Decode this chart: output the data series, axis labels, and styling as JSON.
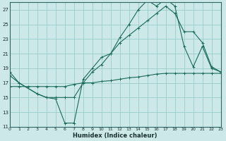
{
  "xlabel": "Humidex (Indice chaleur)",
  "bg_color": "#cce8e8",
  "grid_color": "#99cccc",
  "line_color": "#1a6b5a",
  "xlim": [
    0,
    23
  ],
  "ylim": [
    11,
    28
  ],
  "xticks": [
    0,
    1,
    2,
    3,
    4,
    5,
    6,
    7,
    8,
    9,
    10,
    11,
    12,
    13,
    14,
    15,
    16,
    17,
    18,
    19,
    20,
    21,
    22,
    23
  ],
  "yticks": [
    11,
    13,
    15,
    17,
    19,
    21,
    23,
    25,
    27
  ],
  "series1_x": [
    0,
    1,
    3,
    4,
    5,
    6,
    7,
    8,
    9,
    10,
    11,
    12,
    13,
    14,
    15,
    16,
    17,
    18,
    19,
    20,
    21,
    22,
    23
  ],
  "series1_y": [
    18.5,
    17.0,
    15.5,
    15.0,
    14.8,
    11.5,
    11.5,
    17.5,
    19.0,
    20.5,
    21.0,
    23.2,
    25.0,
    27.0,
    28.3,
    27.5,
    28.5,
    27.5,
    22.0,
    19.2,
    22.0,
    19.0,
    18.5
  ],
  "series2_x": [
    0,
    1,
    3,
    4,
    5,
    6,
    7,
    8,
    9,
    10,
    11,
    12,
    13,
    14,
    15,
    16,
    17,
    18,
    19,
    20,
    21,
    22,
    23
  ],
  "series2_y": [
    18.0,
    17.0,
    15.5,
    15.0,
    15.0,
    15.0,
    15.0,
    17.0,
    18.5,
    19.5,
    21.0,
    22.5,
    23.5,
    24.5,
    25.5,
    26.5,
    27.5,
    26.5,
    24.0,
    24.0,
    22.5,
    19.2,
    18.5
  ],
  "series3_x": [
    0,
    1,
    2,
    3,
    4,
    5,
    6,
    7,
    8,
    9,
    10,
    11,
    12,
    13,
    14,
    15,
    16,
    17,
    18,
    19,
    20,
    21,
    22,
    23
  ],
  "series3_y": [
    16.5,
    16.5,
    16.5,
    16.5,
    16.5,
    16.5,
    16.5,
    16.8,
    17.0,
    17.0,
    17.2,
    17.3,
    17.5,
    17.7,
    17.8,
    18.0,
    18.2,
    18.3,
    18.3,
    18.3,
    18.3,
    18.3,
    18.3,
    18.3
  ]
}
